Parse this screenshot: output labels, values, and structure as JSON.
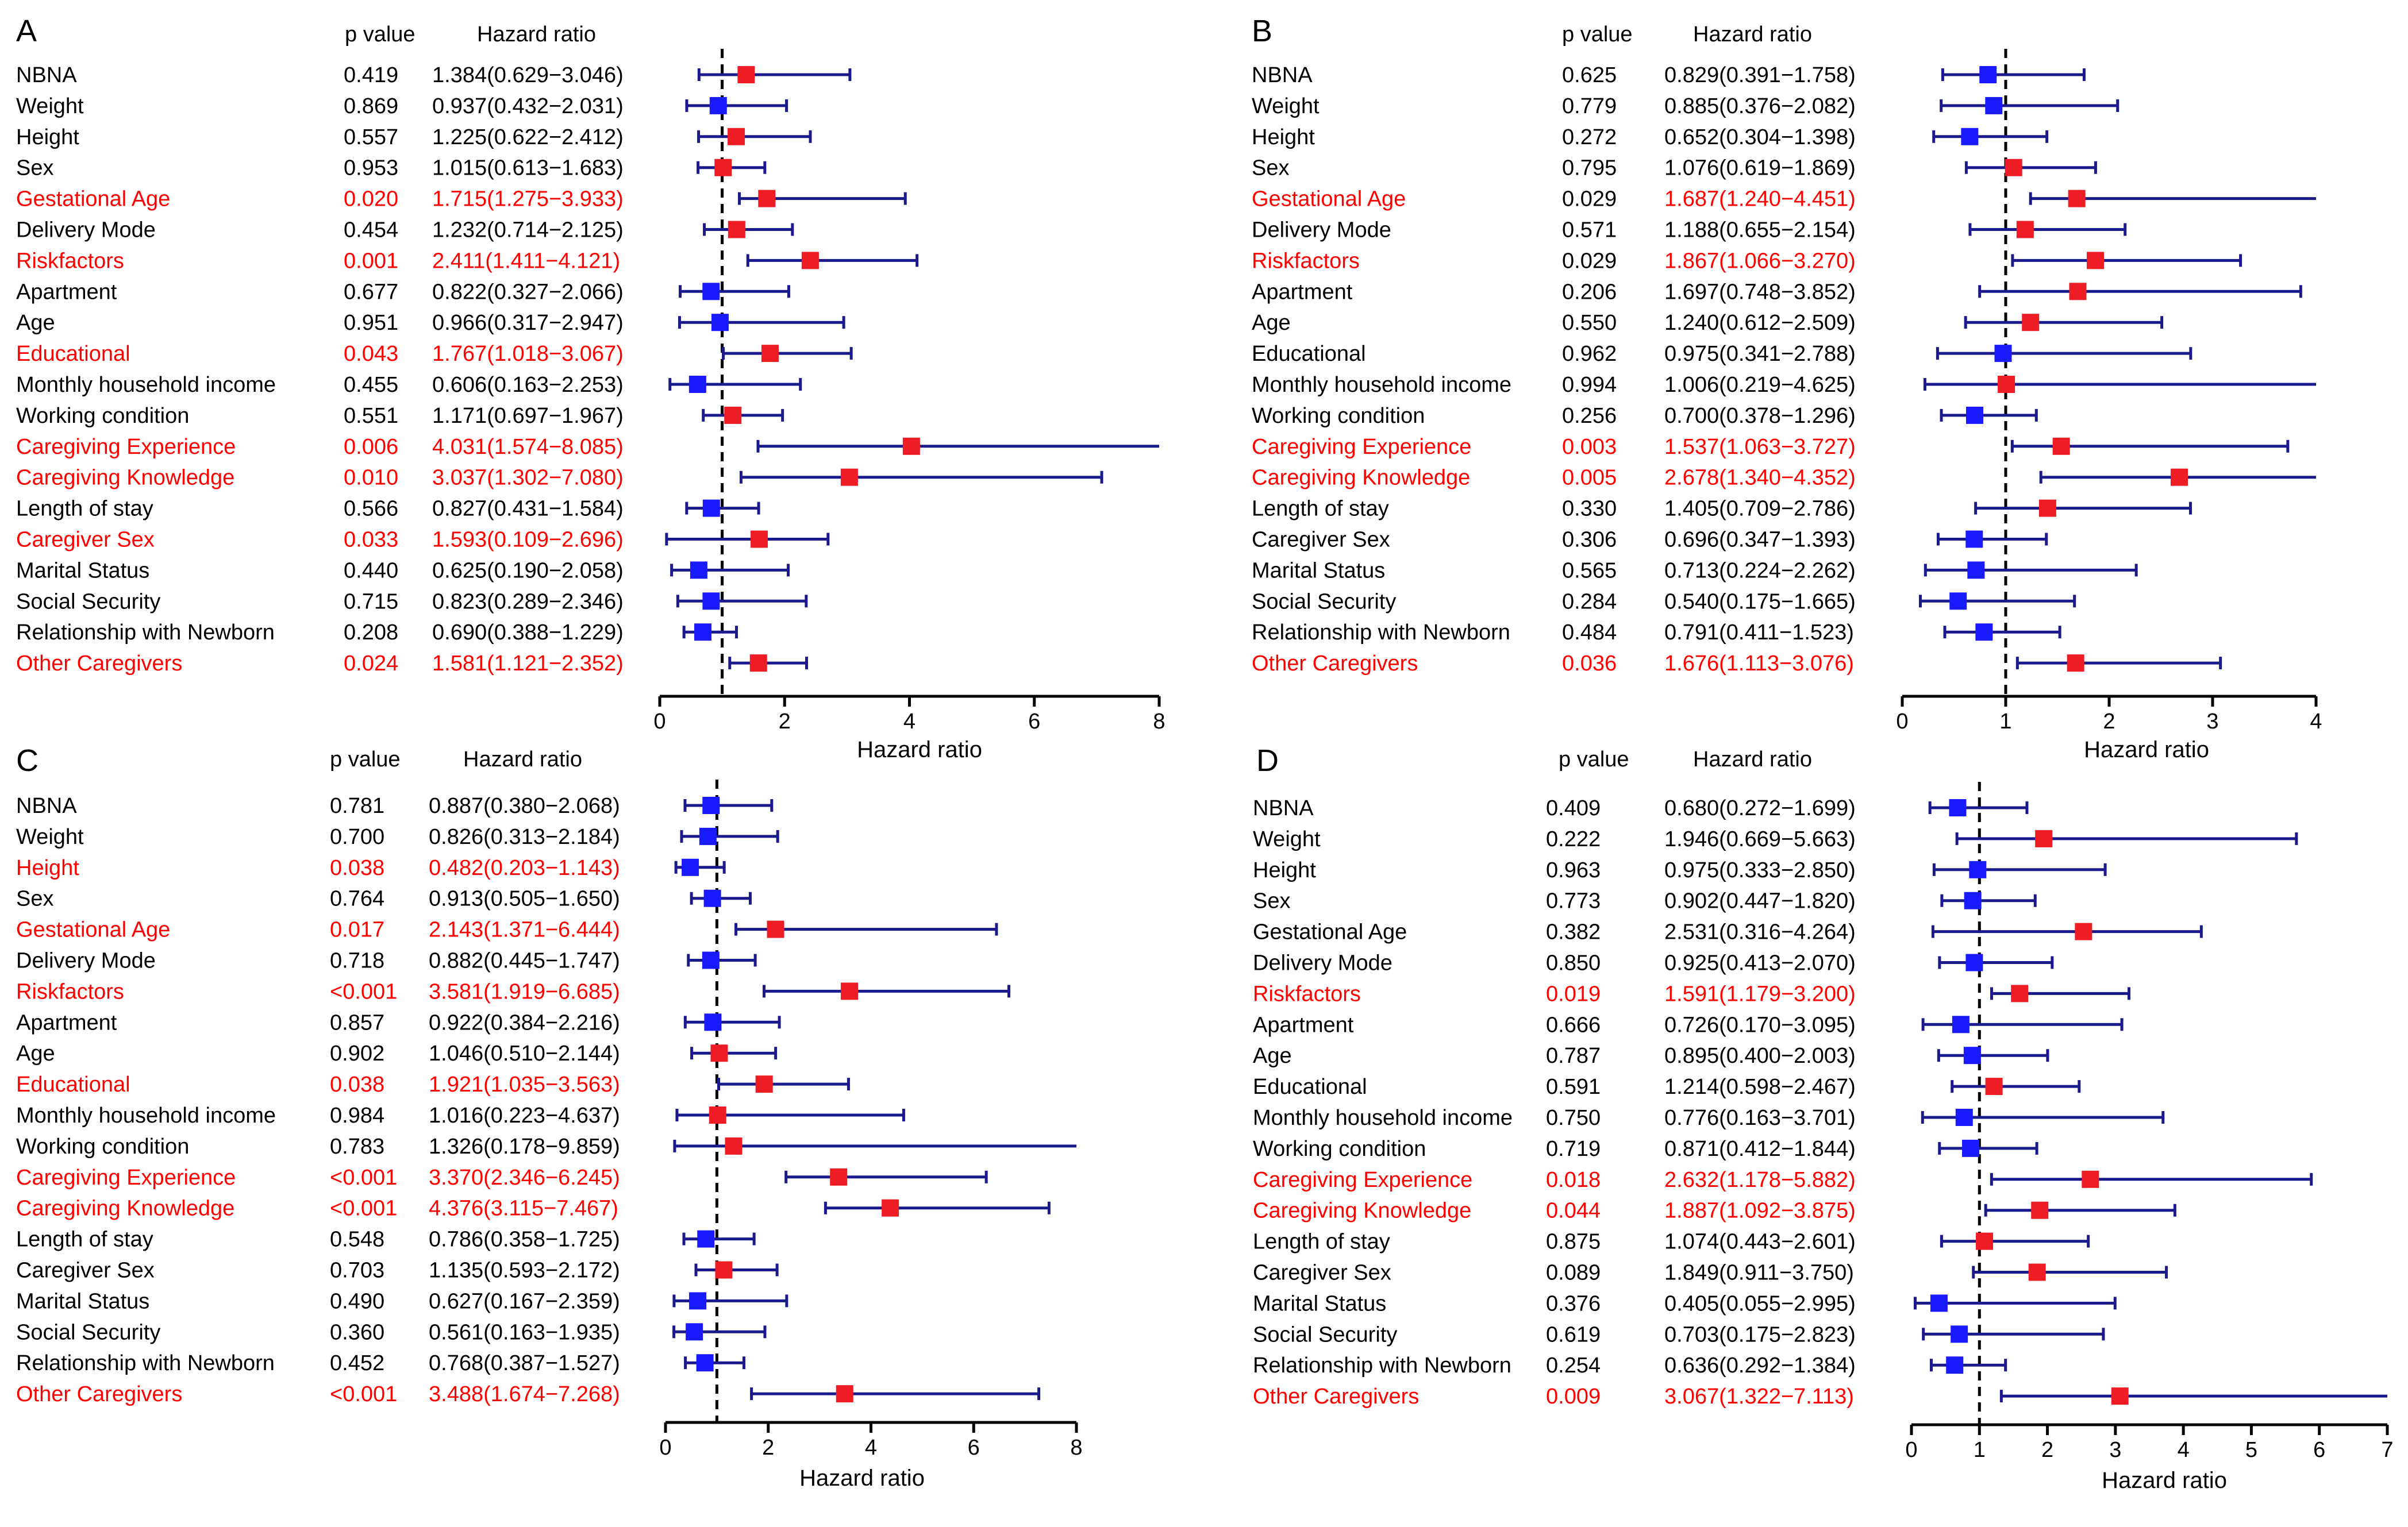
{
  "colors": {
    "significant": "#ff0000",
    "nonsignificant": "#000000",
    "ci_line": "#1a1a8c",
    "marker_up": "#ee1c25",
    "marker_down": "#1a1aff",
    "ref_line": "#000000"
  },
  "chart_data": [
    {
      "type": "forest",
      "panel": "A",
      "header_p": "p value",
      "header_hr": "Hazard ratio",
      "xlabel": "Hazard ratio",
      "xlim": [
        0,
        8
      ],
      "ticks": [
        0,
        2,
        4,
        6,
        8
      ],
      "ref": 1,
      "rows": [
        {
          "name": "NBNA",
          "p": "0.419",
          "hr_text": "1.384(0.629−3.046)",
          "hr": 1.384,
          "lo": 0.629,
          "hi": 3.046,
          "sig": false
        },
        {
          "name": "Weight",
          "p": "0.869",
          "hr_text": "0.937(0.432−2.031)",
          "hr": 0.937,
          "lo": 0.432,
          "hi": 2.031,
          "sig": false
        },
        {
          "name": "Height",
          "p": "0.557",
          "hr_text": "1.225(0.622−2.412)",
          "hr": 1.225,
          "lo": 0.622,
          "hi": 2.412,
          "sig": false
        },
        {
          "name": "Sex",
          "p": "0.953",
          "hr_text": "1.015(0.613−1.683)",
          "hr": 1.015,
          "lo": 0.613,
          "hi": 1.683,
          "sig": false
        },
        {
          "name": "Gestational Age",
          "p": "0.020",
          "hr_text": "1.715(1.275−3.933)",
          "hr": 1.715,
          "lo": 1.275,
          "hi": 3.933,
          "sig": true
        },
        {
          "name": "Delivery Mode",
          "p": "0.454",
          "hr_text": "1.232(0.714−2.125)",
          "hr": 1.232,
          "lo": 0.714,
          "hi": 2.125,
          "sig": false
        },
        {
          "name": "Riskfactors",
          "p": "0.001",
          "hr_text": "2.411(1.411−4.121)",
          "hr": 2.411,
          "lo": 1.411,
          "hi": 4.121,
          "sig": true
        },
        {
          "name": "Apartment",
          "p": "0.677",
          "hr_text": "0.822(0.327−2.066)",
          "hr": 0.822,
          "lo": 0.327,
          "hi": 2.066,
          "sig": false
        },
        {
          "name": "Age",
          "p": "0.951",
          "hr_text": "0.966(0.317−2.947)",
          "hr": 0.966,
          "lo": 0.317,
          "hi": 2.947,
          "sig": false
        },
        {
          "name": "Educational",
          "p": "0.043",
          "hr_text": "1.767(1.018−3.067)",
          "hr": 1.767,
          "lo": 1.018,
          "hi": 3.067,
          "sig": true
        },
        {
          "name": "Monthly household income",
          "p": "0.455",
          "hr_text": "0.606(0.163−2.253)",
          "hr": 0.606,
          "lo": 0.163,
          "hi": 2.253,
          "sig": false
        },
        {
          "name": "Working condition",
          "p": "0.551",
          "hr_text": "1.171(0.697−1.967)",
          "hr": 1.171,
          "lo": 0.697,
          "hi": 1.967,
          "sig": false
        },
        {
          "name": "Caregiving Experience",
          "p": "0.006",
          "hr_text": "4.031(1.574−8.085)",
          "hr": 4.031,
          "lo": 1.574,
          "hi": 8.085,
          "sig": true
        },
        {
          "name": "Caregiving Knowledge",
          "p": "0.010",
          "hr_text": "3.037(1.302−7.080)",
          "hr": 3.037,
          "lo": 1.302,
          "hi": 7.08,
          "sig": true
        },
        {
          "name": "Length of stay",
          "p": "0.566",
          "hr_text": "0.827(0.431−1.584)",
          "hr": 0.827,
          "lo": 0.431,
          "hi": 1.584,
          "sig": false
        },
        {
          "name": "Caregiver Sex",
          "p": "0.033",
          "hr_text": "1.593(0.109−2.696)",
          "hr": 1.593,
          "lo": 0.109,
          "hi": 2.696,
          "sig": true
        },
        {
          "name": "Marital Status",
          "p": "0.440",
          "hr_text": "0.625(0.190−2.058)",
          "hr": 0.625,
          "lo": 0.19,
          "hi": 2.058,
          "sig": false
        },
        {
          "name": "Social Security",
          "p": "0.715",
          "hr_text": "0.823(0.289−2.346)",
          "hr": 0.823,
          "lo": 0.289,
          "hi": 2.346,
          "sig": false
        },
        {
          "name": "Relationship with Newborn",
          "p": "0.208",
          "hr_text": "0.690(0.388−1.229)",
          "hr": 0.69,
          "lo": 0.388,
          "hi": 1.229,
          "sig": false
        },
        {
          "name": "Other Caregivers",
          "p": "0.024",
          "hr_text": "1.581(1.121−2.352)",
          "hr": 1.581,
          "lo": 1.121,
          "hi": 2.352,
          "sig": true
        }
      ]
    },
    {
      "type": "forest",
      "panel": "B",
      "header_p": "p value",
      "header_hr": "Hazard ratio",
      "xlabel": "Hazard ratio",
      "xlim": [
        0,
        4
      ],
      "ticks": [
        0,
        1,
        2,
        3,
        4
      ],
      "ref": 1,
      "rows": [
        {
          "name": "NBNA",
          "p": "0.625",
          "hr_text": "0.829(0.391−1.758)",
          "hr": 0.829,
          "lo": 0.391,
          "hi": 1.758,
          "sig": false
        },
        {
          "name": "Weight",
          "p": "0.779",
          "hr_text": "0.885(0.376−2.082)",
          "hr": 0.885,
          "lo": 0.376,
          "hi": 2.082,
          "sig": false
        },
        {
          "name": "Height",
          "p": "0.272",
          "hr_text": "0.652(0.304−1.398)",
          "hr": 0.652,
          "lo": 0.304,
          "hi": 1.398,
          "sig": false
        },
        {
          "name": "Sex",
          "p": "0.795",
          "hr_text": "1.076(0.619−1.869)",
          "hr": 1.076,
          "lo": 0.619,
          "hi": 1.869,
          "sig": false
        },
        {
          "name": "Gestational Age",
          "p": "0.029",
          "hr_text": "1.687(1.240−4.451)",
          "hr": 1.687,
          "lo": 1.24,
          "hi": 4.451,
          "sig": true,
          "p_sig": false
        },
        {
          "name": "Delivery Mode",
          "p": "0.571",
          "hr_text": "1.188(0.655−2.154)",
          "hr": 1.188,
          "lo": 0.655,
          "hi": 2.154,
          "sig": false
        },
        {
          "name": "Riskfactors",
          "p": "0.029",
          "hr_text": "1.867(1.066−3.270)",
          "hr": 1.867,
          "lo": 1.066,
          "hi": 3.27,
          "sig": true,
          "p_sig": false
        },
        {
          "name": "Apartment",
          "p": "0.206",
          "hr_text": "1.697(0.748−3.852)",
          "hr": 1.697,
          "lo": 0.748,
          "hi": 3.852,
          "sig": false
        },
        {
          "name": "Age",
          "p": "0.550",
          "hr_text": "1.240(0.612−2.509)",
          "hr": 1.24,
          "lo": 0.612,
          "hi": 2.509,
          "sig": false
        },
        {
          "name": "Educational",
          "p": "0.962",
          "hr_text": "0.975(0.341−2.788)",
          "hr": 0.975,
          "lo": 0.341,
          "hi": 2.788,
          "sig": false
        },
        {
          "name": "Monthly household income",
          "p": "0.994",
          "hr_text": "1.006(0.219−4.625)",
          "hr": 1.006,
          "lo": 0.219,
          "hi": 4.625,
          "sig": false
        },
        {
          "name": "Working condition",
          "p": "0.256",
          "hr_text": "0.700(0.378−1.296)",
          "hr": 0.7,
          "lo": 0.378,
          "hi": 1.296,
          "sig": false
        },
        {
          "name": "Caregiving Experience",
          "p": "0.003",
          "hr_text": "1.537(1.063−3.727)",
          "hr": 1.537,
          "lo": 1.063,
          "hi": 3.727,
          "sig": true
        },
        {
          "name": "Caregiving Knowledge",
          "p": "0.005",
          "hr_text": "2.678(1.340−4.352)",
          "hr": 2.678,
          "lo": 1.34,
          "hi": 4.352,
          "sig": true
        },
        {
          "name": "Length of stay",
          "p": "0.330",
          "hr_text": "1.405(0.709−2.786)",
          "hr": 1.405,
          "lo": 0.709,
          "hi": 2.786,
          "sig": false
        },
        {
          "name": "Caregiver Sex",
          "p": "0.306",
          "hr_text": "0.696(0.347−1.393)",
          "hr": 0.696,
          "lo": 0.347,
          "hi": 1.393,
          "sig": false
        },
        {
          "name": "Marital Status",
          "p": "0.565",
          "hr_text": "0.713(0.224−2.262)",
          "hr": 0.713,
          "lo": 0.224,
          "hi": 2.262,
          "sig": false
        },
        {
          "name": "Social Security",
          "p": "0.284",
          "hr_text": "0.540(0.175−1.665)",
          "hr": 0.54,
          "lo": 0.175,
          "hi": 1.665,
          "sig": false
        },
        {
          "name": "Relationship with Newborn",
          "p": "0.484",
          "hr_text": "0.791(0.411−1.523)",
          "hr": 0.791,
          "lo": 0.411,
          "hi": 1.523,
          "sig": false
        },
        {
          "name": "Other Caregivers",
          "p": "0.036",
          "hr_text": "1.676(1.113−3.076)",
          "hr": 1.676,
          "lo": 1.113,
          "hi": 3.076,
          "sig": true
        }
      ]
    },
    {
      "type": "forest",
      "panel": "C",
      "header_p": "p value",
      "header_hr": "Hazard ratio",
      "xlabel": "Hazard ratio",
      "xlim": [
        0,
        8
      ],
      "ticks": [
        0,
        2,
        4,
        6,
        8
      ],
      "ref": 1,
      "rows": [
        {
          "name": "NBNA",
          "p": "0.781",
          "hr_text": "0.887(0.380−2.068)",
          "hr": 0.887,
          "lo": 0.38,
          "hi": 2.068,
          "sig": false
        },
        {
          "name": "Weight",
          "p": "0.700",
          "hr_text": "0.826(0.313−2.184)",
          "hr": 0.826,
          "lo": 0.313,
          "hi": 2.184,
          "sig": false
        },
        {
          "name": "Height",
          "p": "0.038",
          "hr_text": "0.482(0.203−1.143)",
          "hr": 0.482,
          "lo": 0.203,
          "hi": 1.143,
          "sig": true
        },
        {
          "name": "Sex",
          "p": "0.764",
          "hr_text": "0.913(0.505−1.650)",
          "hr": 0.913,
          "lo": 0.505,
          "hi": 1.65,
          "sig": false
        },
        {
          "name": "Gestational Age",
          "p": "0.017",
          "hr_text": "2.143(1.371−6.444)",
          "hr": 2.143,
          "lo": 1.371,
          "hi": 6.444,
          "sig": true
        },
        {
          "name": "Delivery Mode",
          "p": "0.718",
          "hr_text": "0.882(0.445−1.747)",
          "hr": 0.882,
          "lo": 0.445,
          "hi": 1.747,
          "sig": false
        },
        {
          "name": "Riskfactors",
          "p": "<0.001",
          "hr_text": "3.581(1.919−6.685)",
          "hr": 3.581,
          "lo": 1.919,
          "hi": 6.685,
          "sig": true
        },
        {
          "name": "Apartment",
          "p": "0.857",
          "hr_text": "0.922(0.384−2.216)",
          "hr": 0.922,
          "lo": 0.384,
          "hi": 2.216,
          "sig": false
        },
        {
          "name": "Age",
          "p": "0.902",
          "hr_text": "1.046(0.510−2.144)",
          "hr": 1.046,
          "lo": 0.51,
          "hi": 2.144,
          "sig": false
        },
        {
          "name": "Educational",
          "p": "0.038",
          "hr_text": "1.921(1.035−3.563)",
          "hr": 1.921,
          "lo": 1.035,
          "hi": 3.563,
          "sig": true
        },
        {
          "name": "Monthly household income",
          "p": "0.984",
          "hr_text": "1.016(0.223−4.637)",
          "hr": 1.016,
          "lo": 0.223,
          "hi": 4.637,
          "sig": false
        },
        {
          "name": "Working condition",
          "p": "0.783",
          "hr_text": "1.326(0.178−9.859)",
          "hr": 1.326,
          "lo": 0.178,
          "hi": 9.859,
          "sig": false
        },
        {
          "name": "Caregiving Experience",
          "p": "<0.001",
          "hr_text": "3.370(2.346−6.245)",
          "hr": 3.37,
          "lo": 2.346,
          "hi": 6.245,
          "sig": true
        },
        {
          "name": "Caregiving Knowledge",
          "p": "<0.001",
          "hr_text": "4.376(3.115−7.467)",
          "hr": 4.376,
          "lo": 3.115,
          "hi": 7.467,
          "sig": true
        },
        {
          "name": "Length of stay",
          "p": "0.548",
          "hr_text": "0.786(0.358−1.725)",
          "hr": 0.786,
          "lo": 0.358,
          "hi": 1.725,
          "sig": false
        },
        {
          "name": "Caregiver Sex",
          "p": "0.703",
          "hr_text": "1.135(0.593−2.172)",
          "hr": 1.135,
          "lo": 0.593,
          "hi": 2.172,
          "sig": false
        },
        {
          "name": "Marital Status",
          "p": "0.490",
          "hr_text": "0.627(0.167−2.359)",
          "hr": 0.627,
          "lo": 0.167,
          "hi": 2.359,
          "sig": false
        },
        {
          "name": "Social Security",
          "p": "0.360",
          "hr_text": "0.561(0.163−1.935)",
          "hr": 0.561,
          "lo": 0.163,
          "hi": 1.935,
          "sig": false
        },
        {
          "name": "Relationship with Newborn",
          "p": "0.452",
          "hr_text": "0.768(0.387−1.527)",
          "hr": 0.768,
          "lo": 0.387,
          "hi": 1.527,
          "sig": false
        },
        {
          "name": "Other Caregivers",
          "p": "<0.001",
          "hr_text": "3.488(1.674−7.268)",
          "hr": 3.488,
          "lo": 1.674,
          "hi": 7.268,
          "sig": true
        }
      ]
    },
    {
      "type": "forest",
      "panel": "D",
      "header_p": "p value",
      "header_hr": "Hazard ratio",
      "xlabel": "Hazard ratio",
      "xlim": [
        0,
        7
      ],
      "ticks": [
        0,
        1,
        2,
        3,
        4,
        5,
        6,
        7
      ],
      "ref": 1,
      "rows": [
        {
          "name": "NBNA",
          "p": "0.409",
          "hr_text": "0.680(0.272−1.699)",
          "hr": 0.68,
          "lo": 0.272,
          "hi": 1.699,
          "sig": false
        },
        {
          "name": "Weight",
          "p": "0.222",
          "hr_text": "1.946(0.669−5.663)",
          "hr": 1.946,
          "lo": 0.669,
          "hi": 5.663,
          "sig": false
        },
        {
          "name": "Height",
          "p": "0.963",
          "hr_text": "0.975(0.333−2.850)",
          "hr": 0.975,
          "lo": 0.333,
          "hi": 2.85,
          "sig": false
        },
        {
          "name": "Sex",
          "p": "0.773",
          "hr_text": "0.902(0.447−1.820)",
          "hr": 0.902,
          "lo": 0.447,
          "hi": 1.82,
          "sig": false
        },
        {
          "name": "Gestational Age",
          "p": "0.382",
          "hr_text": "2.531(0.316−4.264)",
          "hr": 2.531,
          "lo": 0.316,
          "hi": 4.264,
          "sig": false
        },
        {
          "name": "Delivery Mode",
          "p": "0.850",
          "hr_text": "0.925(0.413−2.070)",
          "hr": 0.925,
          "lo": 0.413,
          "hi": 2.07,
          "sig": false
        },
        {
          "name": "Riskfactors",
          "p": "0.019",
          "hr_text": "1.591(1.179−3.200)",
          "hr": 1.591,
          "lo": 1.179,
          "hi": 3.2,
          "sig": true
        },
        {
          "name": "Apartment",
          "p": "0.666",
          "hr_text": "0.726(0.170−3.095)",
          "hr": 0.726,
          "lo": 0.17,
          "hi": 3.095,
          "sig": false
        },
        {
          "name": "Age",
          "p": "0.787",
          "hr_text": "0.895(0.400−2.003)",
          "hr": 0.895,
          "lo": 0.4,
          "hi": 2.003,
          "sig": false
        },
        {
          "name": "Educational",
          "p": "0.591",
          "hr_text": "1.214(0.598−2.467)",
          "hr": 1.214,
          "lo": 0.598,
          "hi": 2.467,
          "sig": false
        },
        {
          "name": "Monthly household income",
          "p": "0.750",
          "hr_text": "0.776(0.163−3.701)",
          "hr": 0.776,
          "lo": 0.163,
          "hi": 3.701,
          "sig": false
        },
        {
          "name": "Working condition",
          "p": "0.719",
          "hr_text": "0.871(0.412−1.844)",
          "hr": 0.871,
          "lo": 0.412,
          "hi": 1.844,
          "sig": false
        },
        {
          "name": "Caregiving Experience",
          "p": "0.018",
          "hr_text": "2.632(1.178−5.882)",
          "hr": 2.632,
          "lo": 1.178,
          "hi": 5.882,
          "sig": true
        },
        {
          "name": "Caregiving Knowledge",
          "p": "0.044",
          "hr_text": "1.887(1.092−3.875)",
          "hr": 1.887,
          "lo": 1.092,
          "hi": 3.875,
          "sig": true
        },
        {
          "name": "Length of stay",
          "p": "0.875",
          "hr_text": "1.074(0.443−2.601)",
          "hr": 1.074,
          "lo": 0.443,
          "hi": 2.601,
          "sig": false
        },
        {
          "name": "Caregiver Sex",
          "p": "0.089",
          "hr_text": "1.849(0.911−3.750)",
          "hr": 1.849,
          "lo": 0.911,
          "hi": 3.75,
          "sig": false
        },
        {
          "name": "Marital Status",
          "p": "0.376",
          "hr_text": "0.405(0.055−2.995)",
          "hr": 0.405,
          "lo": 0.055,
          "hi": 2.995,
          "sig": false
        },
        {
          "name": "Social Security",
          "p": "0.619",
          "hr_text": "0.703(0.175−2.823)",
          "hr": 0.703,
          "lo": 0.175,
          "hi": 2.823,
          "sig": false
        },
        {
          "name": "Relationship with Newborn",
          "p": "0.254",
          "hr_text": "0.636(0.292−1.384)",
          "hr": 0.636,
          "lo": 0.292,
          "hi": 1.384,
          "sig": false
        },
        {
          "name": "Other Caregivers",
          "p": "0.009",
          "hr_text": "3.067(1.322−7.113)",
          "hr": 3.067,
          "lo": 1.322,
          "hi": 7.113,
          "sig": true
        }
      ]
    }
  ]
}
